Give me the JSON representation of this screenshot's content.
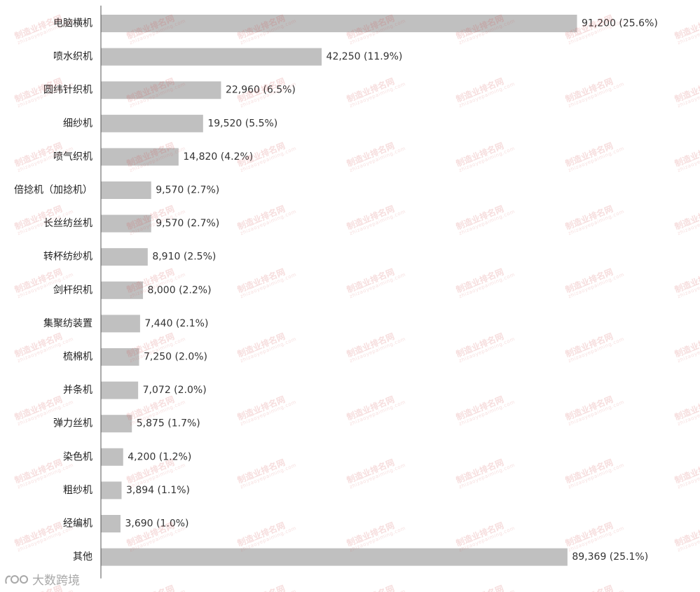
{
  "watermark": {
    "text": "制造业排名网",
    "subtext": "zhizaoyepaiming.com"
  },
  "brand": {
    "text": "大数跨境"
  },
  "chart_data": {
    "type": "bar",
    "orientation": "horizontal",
    "title": "",
    "xlabel": "",
    "ylabel": "",
    "grid": false,
    "bar_color": "#c0c0c0",
    "xlim": [
      0,
      100000
    ],
    "categories": [
      "电脑横机",
      "喷水织机",
      "圆纬针织机",
      "细纱机",
      "喷气织机",
      "倍捻机（加捻机）",
      "长丝纺丝机",
      "转杯纺纱机",
      "剑杆织机",
      "集聚纺装置",
      "梳棉机",
      "并条机",
      "弹力丝机",
      "染色机",
      "粗纱机",
      "经编机",
      "其他"
    ],
    "values": [
      91200,
      42250,
      22960,
      19520,
      14820,
      9570,
      9570,
      8910,
      8000,
      7440,
      7250,
      7072,
      5875,
      4200,
      3894,
      3690,
      89369
    ],
    "data_labels": [
      "91,200 (25.6%)",
      "42,250 (11.9%)",
      "22,960 (6.5%)",
      "19,520 (5.5%)",
      "14,820 (4.2%)",
      "9,570 (2.7%)",
      "9,570 (2.7%)",
      "8,910 (2.5%)",
      "8,000 (2.2%)",
      "7,440 (2.1%)",
      "7,250 (2.0%)",
      "7,072 (2.0%)",
      "5,875 (1.7%)",
      "4,200 (1.2%)",
      "3,894 (1.1%)",
      "3,690 (1.0%)",
      "89,369 (25.1%)"
    ]
  }
}
